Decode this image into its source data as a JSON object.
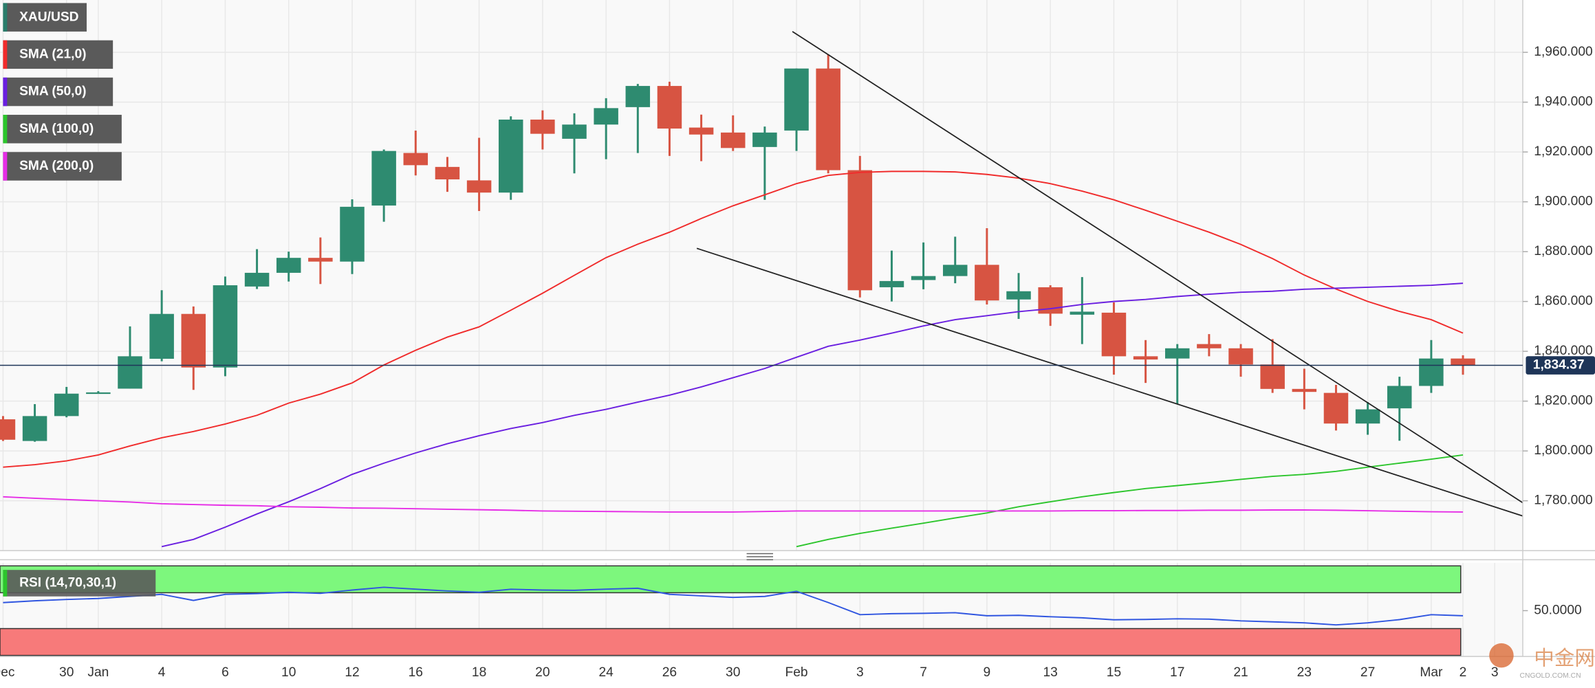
{
  "chart_data": {
    "type": "candlestick",
    "categories": [
      "Dec",
      null,
      "30",
      "Jan",
      null,
      "4",
      null,
      "6",
      null,
      "10",
      null,
      "12",
      null,
      "16",
      null,
      "18",
      null,
      "20",
      null,
      "24",
      null,
      "26",
      null,
      "30",
      null,
      "Feb",
      null,
      "3",
      null,
      "7",
      null,
      "9",
      null,
      "13",
      null,
      "15",
      null,
      "17",
      null,
      "21",
      null,
      "23",
      null,
      "27",
      null,
      "Mar",
      "2",
      "3"
    ],
    "series": [
      {
        "name": "XAU/USD",
        "color": "#2a7d6b",
        "up_color": "#2e8b70",
        "down_color": "#d75442",
        "open": [
          1812.7,
          1804,
          1814,
          1823,
          1825,
          1837,
          1855,
          1833.5,
          1866,
          1871.5,
          1877.5,
          1876,
          1898.5,
          1919.6,
          1914,
          1908.6,
          1903.7,
          1933,
          1925.3,
          1931,
          1938,
          1946.5,
          1929.8,
          1927.8,
          1922,
          1928.6,
          1953.5,
          1912.7,
          1865.7,
          1868.6,
          1870.2,
          1874.7,
          1860.8,
          1865.7,
          1854.7,
          1855.5,
          1838,
          1837.1,
          1842.9,
          1841.2,
          1834.7,
          1824.9,
          1823.3,
          1811,
          1817.1,
          1826.1,
          1837.1,
          null
        ],
        "high": [
          1814,
          1818.8,
          1825.7,
          1824,
          1850,
          1864.5,
          1858,
          1870,
          1881,
          1880,
          1885.7,
          1901,
          1921,
          1928.6,
          1918,
          1925.7,
          1934.3,
          1936.7,
          1935.5,
          1941.6,
          1947.3,
          1948.2,
          1935,
          1934.7,
          1930.2,
          1953.5,
          1959.2,
          1918.4,
          1880.4,
          1883.7,
          1886,
          1889.4,
          1871.4,
          1866.5,
          1869.8,
          1859.6,
          1844.5,
          1842.9,
          1846.9,
          1842.9,
          1844.9,
          1833,
          1826.5,
          1819.6,
          1829.8,
          1844.5,
          1838.4,
          null
        ],
        "low": [
          1804,
          1803.7,
          1813.5,
          1823,
          1825,
          1836,
          1824.5,
          1830,
          1865,
          1868,
          1867,
          1871,
          1892,
          1910.6,
          1904,
          1896.3,
          1900.8,
          1921,
          1911.4,
          1917.1,
          1919.6,
          1918.4,
          1916.3,
          1920.4,
          1900.8,
          1920.4,
          1911.4,
          1861.6,
          1860,
          1864.9,
          1867.3,
          1858.8,
          1853,
          1850.2,
          1842.9,
          1830.6,
          1827.3,
          1818.8,
          1838,
          1829.8,
          1823.3,
          1816.7,
          1808.2,
          1806.5,
          1804.1,
          1823.3,
          1830.6,
          null
        ],
        "close": [
          1804.5,
          1814,
          1823,
          1823.5,
          1838,
          1855,
          1833.5,
          1866.5,
          1871.5,
          1877.5,
          1876,
          1898,
          1920.4,
          1914.7,
          1909,
          1903.7,
          1933,
          1927.3,
          1931,
          1937.6,
          1946.5,
          1929.4,
          1927,
          1921.6,
          1927.8,
          1953.5,
          1912.7,
          1864.5,
          1868.2,
          1870.2,
          1874.7,
          1860.4,
          1864.1,
          1855.1,
          1855.9,
          1838,
          1836.7,
          1841.2,
          1841.2,
          1834.7,
          1824.9,
          1823.7,
          1811,
          1816.7,
          1826.1,
          1837.1,
          1834.4,
          null
        ]
      },
      {
        "name": "SMA (21,0)",
        "color": "#f02b2b",
        "values": [
          1793.5,
          1794.5,
          1796,
          1798.4,
          1802,
          1805.3,
          1807.8,
          1810.8,
          1814.3,
          1819.2,
          1822.8,
          1827.3,
          1834.5,
          1840.4,
          1845.7,
          1849.8,
          1856.5,
          1863.3,
          1870.5,
          1877.6,
          1883,
          1887.8,
          1893.3,
          1898.4,
          1902.8,
          1907.3,
          1910.6,
          1911.8,
          1912.2,
          1912.2,
          1912,
          1911,
          1909.5,
          1907.3,
          1904.3,
          1900.8,
          1896.6,
          1892.2,
          1887.8,
          1882.9,
          1877.2,
          1870.6,
          1865,
          1860,
          1856,
          1852.7,
          1847.3,
          null
        ]
      },
      {
        "name": "SMA (50,0)",
        "color": "#6a1fe0",
        "values": [
          null,
          null,
          null,
          null,
          null,
          1761.6,
          1764.5,
          1769.4,
          1774.7,
          1779.6,
          1784.9,
          1790.6,
          1795.1,
          1799.2,
          1802.9,
          1806.1,
          1809,
          1811.4,
          1814.3,
          1816.7,
          1819.6,
          1822.4,
          1825.7,
          1829.4,
          1833.1,
          1837.6,
          1842,
          1844.5,
          1847.3,
          1850.2,
          1852.7,
          1854.3,
          1855.9,
          1857.1,
          1858.8,
          1860,
          1860.8,
          1862,
          1862.9,
          1863.7,
          1864.1,
          1864.9,
          1865.3,
          1865.7,
          1866.1,
          1866.5,
          1867.3,
          null
        ]
      },
      {
        "name": "SMA (100,0)",
        "color": "#2cc52c",
        "values": [
          null,
          null,
          null,
          null,
          null,
          null,
          null,
          null,
          null,
          null,
          null,
          null,
          null,
          null,
          null,
          null,
          null,
          null,
          null,
          null,
          null,
          null,
          null,
          null,
          null,
          1761.6,
          1764.5,
          1766.9,
          1769,
          1771,
          1773.1,
          1775.1,
          1777.6,
          1779.6,
          1781.6,
          1783.3,
          1784.9,
          1786.1,
          1787.3,
          1788.6,
          1789.8,
          1790.6,
          1791.8,
          1793.5,
          1795.1,
          1796.7,
          1798.4,
          null
        ]
      },
      {
        "name": "SMA (200,0)",
        "color": "#e62de6",
        "values": [
          1781.6,
          1781,
          1780.5,
          1780,
          1779.5,
          1778.8,
          1778.5,
          1778.2,
          1778,
          1777.6,
          1777.4,
          1777.1,
          1777,
          1776.8,
          1776.6,
          1776.4,
          1776.2,
          1775.9,
          1775.8,
          1775.7,
          1775.6,
          1775.5,
          1775.5,
          1775.5,
          1775.7,
          1775.9,
          1775.9,
          1775.9,
          1775.9,
          1775.9,
          1775.9,
          1775.9,
          1775.9,
          1775.9,
          1776,
          1776,
          1776.1,
          1776.1,
          1776.2,
          1776.2,
          1776.3,
          1776.3,
          1776.2,
          1776,
          1775.8,
          1775.6,
          1775.5,
          null
        ]
      }
    ],
    "ylim": [
      1760,
      1981
    ],
    "yticks": [
      {
        "value": 1780,
        "label": "1,780.000"
      },
      {
        "value": 1800,
        "label": "1,800.000"
      },
      {
        "value": 1820,
        "label": "1,820.000"
      },
      {
        "value": 1840,
        "label": "1,840.000"
      },
      {
        "value": 1860,
        "label": "1,860.000"
      },
      {
        "value": 1880,
        "label": "1,880.000"
      },
      {
        "value": 1900,
        "label": "1,900.000"
      },
      {
        "value": 1920,
        "label": "1,920.000"
      },
      {
        "value": 1940,
        "label": "1,940.000"
      },
      {
        "value": 1960,
        "label": "1,960.000"
      }
    ],
    "grid": true,
    "current_price": {
      "value": 1834.37,
      "label": "1,834.37",
      "color": "#1e3558"
    },
    "rsi": {
      "name": "RSI (14,70,30,1)",
      "color": "#2f55e0",
      "values": [
        59,
        61,
        62.5,
        63.6,
        65.9,
        68.2,
        61.4,
        68.2,
        69,
        70.5,
        69.3,
        73,
        76.1,
        74,
        72,
        70.5,
        73.9,
        73,
        72.7,
        74,
        75,
        68.2,
        66.5,
        64.8,
        65.9,
        71.6,
        59.1,
        45.5,
        46.6,
        47,
        47.7,
        44.3,
        44.8,
        43.2,
        42,
        39.8,
        40.2,
        40.9,
        40.5,
        38.6,
        37.5,
        36.4,
        34.1,
        36.4,
        40,
        45.5,
        44.3,
        null
      ],
      "ylim": [
        0,
        100
      ],
      "yticks": [
        {
          "value": 50,
          "label": "50.0000"
        }
      ],
      "overbought": 70,
      "oversold": 30,
      "overbought_color": "#7df77d",
      "oversold_color": "#f77a7a"
    }
  },
  "watermark": {
    "name": "中金网",
    "url": "CNGOLD.COM.CN"
  }
}
